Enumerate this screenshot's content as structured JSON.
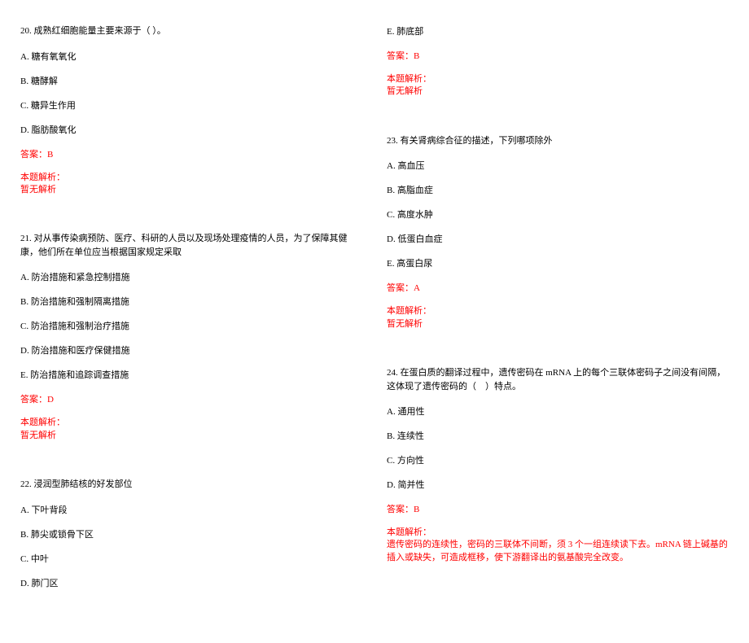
{
  "colors": {
    "text": "#000000",
    "highlight": "#ff0000",
    "background": "#ffffff"
  },
  "typography": {
    "fontFamily": "SimSun",
    "fontSize": 11,
    "lineHeight": 1.5
  },
  "leftColumn": {
    "q20": {
      "text": "20. 成熟红细胞能量主要来源于（ ）。",
      "options": {
        "A": "A. 糖有氧氧化",
        "B": "B. 糖酵解",
        "C": "C. 糖异生作用",
        "D": "D. 脂肪酸氧化"
      },
      "answer": "答案：B",
      "analysisLabel": "本题解析：",
      "analysisText": "暂无解析"
    },
    "q21": {
      "text": "21. 对从事传染病预防、医疗、科研的人员以及现场处理疫情的人员，为了保障其健康，他们所在单位应当根据国家规定采取",
      "options": {
        "A": "A. 防治措施和紧急控制措施",
        "B": "B. 防治措施和强制隔离措施",
        "C": "C. 防治措施和强制治疗措施",
        "D": "D. 防治措施和医疗保健措施",
        "E": "E. 防治措施和追踪调查措施"
      },
      "answer": "答案：D",
      "analysisLabel": "本题解析：",
      "analysisText": "暂无解析"
    },
    "q22": {
      "text": "22. 浸润型肺结核的好发部位",
      "options": {
        "A": "A. 下叶背段",
        "B": "B. 肺尖或锁骨下区",
        "C": "C. 中叶",
        "D": "D. 肺门区"
      }
    }
  },
  "rightColumn": {
    "q22end": {
      "optionE": "E. 肺底部",
      "answer": "答案：B",
      "analysisLabel": "本题解析：",
      "analysisText": "暂无解析"
    },
    "q23": {
      "text": "23. 有关肾病综合征的描述，下列哪项除外",
      "options": {
        "A": "A. 高血压",
        "B": "B. 高脂血症",
        "C": "C. 高度水肿",
        "D": "D. 低蛋白血症",
        "E": "E. 高蛋白尿"
      },
      "answer": "答案：A",
      "analysisLabel": "本题解析：",
      "analysisText": "暂无解析"
    },
    "q24": {
      "text": "24. 在蛋白质的翻译过程中，遗传密码在 mRNA 上的每个三联体密码子之间没有间隔，这体现了遗传密码的（　）特点。",
      "options": {
        "A": "A. 通用性",
        "B": "B. 连续性",
        "C": "C. 方向性",
        "D": "D. 简并性"
      },
      "answer": "答案：B",
      "analysisLabel": "本题解析：",
      "analysisText": "遗传密码的连续性，密码的三联体不间断，须 3 个一组连续读下去。mRNA 链上碱基的插入或缺失，可造成框移，使下游翻译出的氨基酸完全改变。"
    }
  }
}
